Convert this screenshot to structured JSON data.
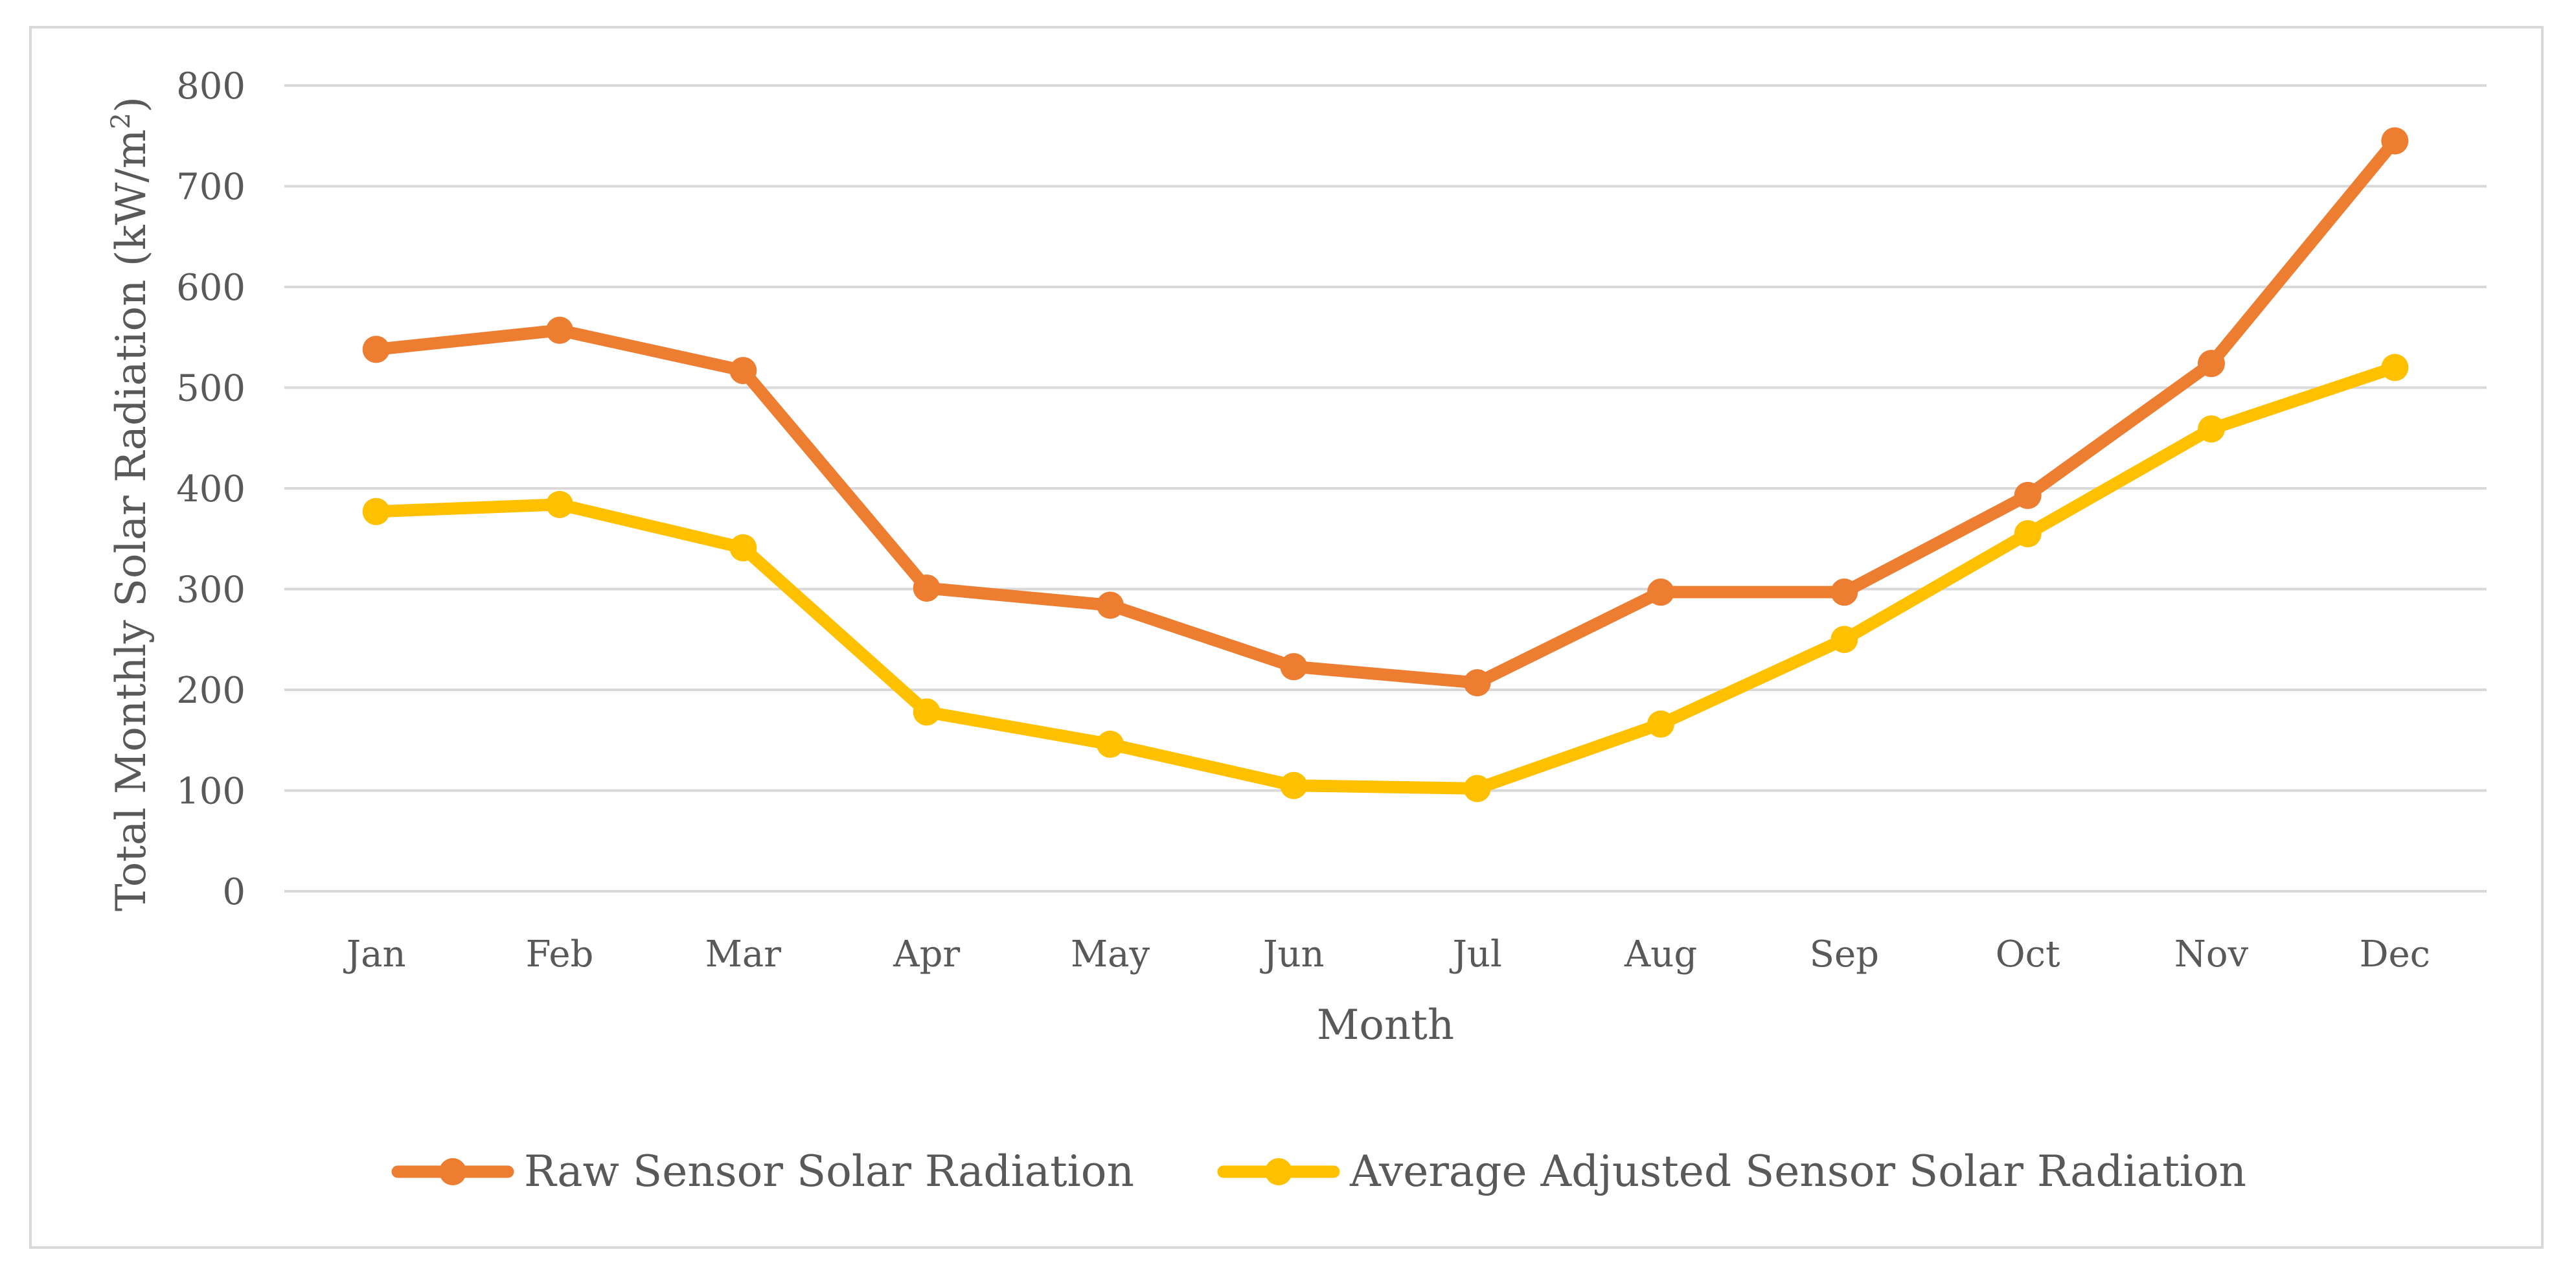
{
  "chart_data": {
    "type": "line",
    "title": "",
    "xlabel": "Month",
    "ylabel": "Total Monthly  Solar Radiation (kW/m²)",
    "ylabel_parts": {
      "before": "Total Monthly  Solar Radiation (kW/m",
      "sup": "2",
      "after": ")"
    },
    "categories": [
      "Jan",
      "Feb",
      "Mar",
      "Apr",
      "May",
      "Jun",
      "Jul",
      "Aug",
      "Sep",
      "Oct",
      "Nov",
      "Dec"
    ],
    "ylim": [
      0,
      800
    ],
    "yticks": [
      "0",
      "100",
      "200",
      "300",
      "400",
      "500",
      "600",
      "700",
      "800"
    ],
    "grid": true,
    "legend_position": "bottom",
    "series": [
      {
        "name": "Raw Sensor Solar Radiation",
        "color": "#ED7D31",
        "values": [
          538,
          557,
          517,
          301,
          284,
          223,
          207,
          297,
          297,
          393,
          524,
          745
        ]
      },
      {
        "name": "Average Adjusted Sensor Solar Radiation",
        "color": "#FFC000",
        "values": [
          377,
          384,
          341,
          178,
          146,
          105,
          102,
          166,
          250,
          355,
          459,
          520
        ]
      }
    ]
  }
}
